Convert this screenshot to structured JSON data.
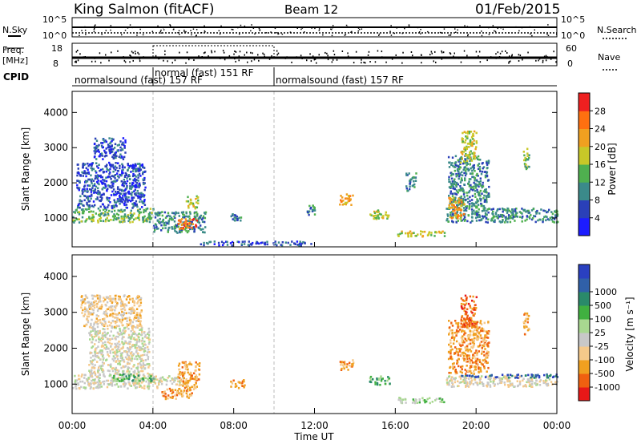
{
  "header": {
    "station": "King Salmon (fitACF)",
    "beam": "Beam 12",
    "date": "01/Feb/2015"
  },
  "strips": {
    "nsky_label": "N.Sky",
    "nsky_ticks": [
      "10^5",
      "10^0"
    ],
    "nsearch_label": "N.Search",
    "nsearch_ticks": [
      "10^5",
      "10^0"
    ],
    "freq_label_1": "Freq.",
    "freq_label_2": "[MHz]",
    "freq_ticks": [
      "18",
      "8"
    ],
    "nave_label": "Nave",
    "nave_ticks": [
      "60",
      "0"
    ],
    "cpid_label": "CPID",
    "cpid_segments": [
      {
        "text": "normalsound (fast) 157 RF",
        "start_hour": 0,
        "end_hour": 4
      },
      {
        "text": "normal (fast) 151 RF",
        "start_hour": 4,
        "end_hour": 10
      },
      {
        "text": "normalsound (fast) 157 RF",
        "start_hour": 10,
        "end_hour": 24
      }
    ]
  },
  "chart_data": [
    {
      "type": "heatmap",
      "panel": "power",
      "ylabel": "Slant Range [km]",
      "xlim": [
        0,
        24
      ],
      "ylim": [
        180,
        4600
      ],
      "yticks": [
        1000,
        2000,
        3000,
        4000
      ],
      "colorbar": {
        "label": "Power [dB]",
        "ticks": [
          "4",
          "8",
          "12",
          "16",
          "20",
          "24",
          "28"
        ],
        "colors": [
          "#1c1cff",
          "#2a40b8",
          "#3b8a8a",
          "#4fb04f",
          "#c8c828",
          "#f0a020",
          "#ff7010",
          "#ee2020"
        ]
      },
      "regions": [
        {
          "h0": 0.0,
          "h1": 4.0,
          "r0": 900,
          "r1": 1300,
          "level": 3
        },
        {
          "h0": 0.2,
          "h1": 3.6,
          "r0": 1300,
          "r1": 2600,
          "level": 1
        },
        {
          "h0": 1.0,
          "h1": 2.6,
          "r0": 2700,
          "r1": 3300,
          "level": 1
        },
        {
          "h0": 4.0,
          "h1": 6.6,
          "r0": 600,
          "r1": 1200,
          "level": 2
        },
        {
          "h0": 5.2,
          "h1": 6.2,
          "r0": 700,
          "r1": 1000,
          "level": 6
        },
        {
          "h0": 5.6,
          "h1": 6.2,
          "r0": 1300,
          "r1": 1650,
          "level": 4
        },
        {
          "h0": 6.2,
          "h1": 11.8,
          "r0": 250,
          "r1": 360,
          "level": 1
        },
        {
          "h0": 7.8,
          "h1": 8.4,
          "r0": 950,
          "r1": 1150,
          "level": 2
        },
        {
          "h0": 11.6,
          "h1": 12.0,
          "r0": 1100,
          "r1": 1400,
          "level": 2
        },
        {
          "h0": 13.2,
          "h1": 13.9,
          "r0": 1400,
          "r1": 1700,
          "level": 5
        },
        {
          "h0": 14.7,
          "h1": 15.7,
          "r0": 1000,
          "r1": 1250,
          "level": 4
        },
        {
          "h0": 16.5,
          "h1": 17.0,
          "r0": 1800,
          "r1": 2300,
          "level": 2
        },
        {
          "h0": 16.0,
          "h1": 18.4,
          "r0": 500,
          "r1": 650,
          "level": 4
        },
        {
          "h0": 18.5,
          "h1": 24.0,
          "r0": 900,
          "r1": 1300,
          "level": 2
        },
        {
          "h0": 18.6,
          "h1": 20.6,
          "r0": 1300,
          "r1": 2800,
          "level": 2
        },
        {
          "h0": 19.2,
          "h1": 20.0,
          "r0": 2600,
          "r1": 3500,
          "level": 4
        },
        {
          "h0": 18.6,
          "h1": 19.4,
          "r0": 1000,
          "r1": 1600,
          "level": 5
        },
        {
          "h0": 22.3,
          "h1": 22.6,
          "r0": 2400,
          "r1": 3000,
          "level": 3
        }
      ]
    },
    {
      "type": "heatmap",
      "panel": "velocity",
      "xlabel": "Time UT",
      "ylabel": "Slant Range [km]",
      "xlim": [
        0,
        24
      ],
      "ylim": [
        180,
        4600
      ],
      "yticks": [
        1000,
        2000,
        3000,
        4000
      ],
      "xticks": [
        "00:00",
        "04:00",
        "08:00",
        "12:00",
        "16:00",
        "20:00",
        "00:00"
      ],
      "colorbar": {
        "label": "Velocity [m s⁻¹]",
        "ticks": [
          "-1000",
          "-500",
          "-100",
          "-25",
          "25",
          "100",
          "500",
          "1000"
        ],
        "colors": [
          "#e81818",
          "#f06010",
          "#f0a020",
          "#f5c98a",
          "#c8c8c8",
          "#a8d890",
          "#40b040",
          "#2a8a6a",
          "#3060a8",
          "#2a40c0"
        ]
      },
      "regions": [
        {
          "h0": 0.0,
          "h1": 4.2,
          "r0": 900,
          "r1": 1300,
          "level": 4
        },
        {
          "h0": 0.8,
          "h1": 3.8,
          "r0": 1300,
          "r1": 2600,
          "level": 4
        },
        {
          "h0": 2.0,
          "h1": 4.0,
          "r0": 1100,
          "r1": 1300,
          "level": 6
        },
        {
          "h0": 0.4,
          "h1": 3.4,
          "r0": 2600,
          "r1": 3500,
          "level": 3
        },
        {
          "h0": 4.0,
          "h1": 5.6,
          "r0": 1000,
          "r1": 1250,
          "level": 4
        },
        {
          "h0": 5.2,
          "h1": 6.3,
          "r0": 900,
          "r1": 1650,
          "level": 2
        },
        {
          "h0": 4.4,
          "h1": 6.0,
          "r0": 600,
          "r1": 900,
          "level": 2
        },
        {
          "h0": 7.8,
          "h1": 8.5,
          "r0": 900,
          "r1": 1150,
          "level": 2
        },
        {
          "h0": 13.2,
          "h1": 13.9,
          "r0": 1400,
          "r1": 1700,
          "level": 2
        },
        {
          "h0": 14.7,
          "h1": 15.7,
          "r0": 1000,
          "r1": 1250,
          "level": 6
        },
        {
          "h0": 16.0,
          "h1": 18.4,
          "r0": 500,
          "r1": 650,
          "level": 5
        },
        {
          "h0": 18.5,
          "h1": 24.0,
          "r0": 950,
          "r1": 1250,
          "level": 4
        },
        {
          "h0": 19.2,
          "h1": 24.0,
          "r0": 1200,
          "r1": 1300,
          "level": 8
        },
        {
          "h0": 18.6,
          "h1": 20.6,
          "r0": 1300,
          "r1": 2800,
          "level": 2
        },
        {
          "h0": 19.2,
          "h1": 20.0,
          "r0": 2600,
          "r1": 3500,
          "level": 1
        },
        {
          "h0": 22.3,
          "h1": 22.6,
          "r0": 2400,
          "r1": 3000,
          "level": 2
        }
      ]
    }
  ]
}
